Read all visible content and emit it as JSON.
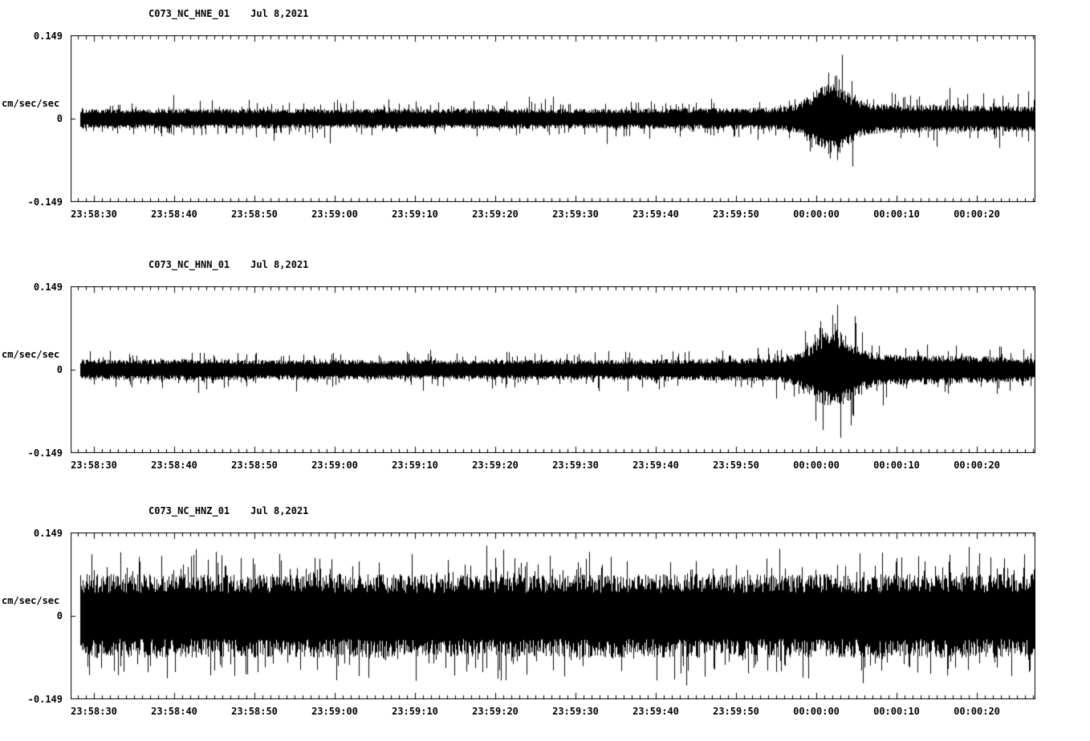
{
  "page": {
    "background": "#ffffff",
    "foreground": "#000000"
  },
  "chart_data": [
    {
      "type": "line",
      "subtype": "seismogram",
      "station": "C073_NC_HNE_01",
      "date": "Jul 8,2021",
      "title": "C073_NC_HNE_01  Jul 8,2021",
      "ylabel": "cm/sec/sec",
      "ylim": [
        -0.149,
        0.149
      ],
      "y_tick_labels": [
        "0.149",
        "0",
        "-0.149"
      ],
      "x_tick_labels": [
        "23:58:30",
        "23:58:40",
        "23:58:50",
        "23:59:00",
        "23:59:10",
        "23:59:20",
        "23:59:30",
        "23:59:40",
        "23:59:50",
        "00:00:00",
        "00:00:10",
        "00:00:20"
      ],
      "x_range": [
        "23:58:27",
        "00:00:27"
      ],
      "grid": false,
      "legend": "none",
      "series": [
        {
          "name": "C073.NC.HNE.01",
          "units": "cm/sec/sec",
          "description": "continuous background noise ~±0.02 cm/sec/sec; signal burst arriving ~00:00:00 peaking ~±0.09, amplitude slightly elevated through end of window",
          "event": {
            "arrival_time": "00:00:00",
            "peak_amplitude": 0.09
          },
          "waveform": {
            "seed": 101,
            "baseline_amp": 0.018,
            "spike": {
              "prob": 0.1,
              "mult": [
                1.4,
                2.0
              ]
            },
            "rare_spike": {
              "prob": 0.012,
              "mult": [
                2.1,
                2.6
              ]
            },
            "envelope": [
              [
                0,
                1.0
              ],
              [
                0.55,
                1.0
              ],
              [
                0.7,
                1.08
              ],
              [
                0.8,
                1.35
              ],
              [
                0.85,
                1.45
              ],
              [
                0.92,
                1.35
              ],
              [
                1,
                1.25
              ]
            ],
            "burst": {
              "center_frac": 0.787,
              "sigma_frac": 0.018,
              "add_mult": 2.2
            }
          }
        }
      ]
    },
    {
      "type": "line",
      "subtype": "seismogram",
      "station": "C073_NC_HNN_01",
      "date": "Jul 8,2021",
      "title": "C073_NC_HNN_01  Jul 8,2021",
      "ylabel": "cm/sec/sec",
      "ylim": [
        -0.149,
        0.149
      ],
      "y_tick_labels": [
        "0.149",
        "0",
        "-0.149"
      ],
      "x_tick_labels": [
        "23:58:30",
        "23:58:40",
        "23:58:50",
        "23:59:00",
        "23:59:10",
        "23:59:20",
        "23:59:30",
        "23:59:40",
        "23:59:50",
        "00:00:00",
        "00:00:10",
        "00:00:20"
      ],
      "x_range": [
        "23:58:27",
        "00:00:27"
      ],
      "grid": false,
      "legend": "none",
      "series": [
        {
          "name": "C073.NC.HNN.01",
          "units": "cm/sec/sec",
          "description": "continuous background noise ~±0.02 cm/sec/sec; strongest burst ~00:00:00 peaking ~±0.10 with spiky coda clusters near 00:00:08 and 00:00:13",
          "event": {
            "arrival_time": "00:00:00",
            "peak_amplitude": 0.1
          },
          "waveform": {
            "seed": 202,
            "baseline_amp": 0.018,
            "spike": {
              "prob": 0.1,
              "mult": [
                1.4,
                2.0
              ]
            },
            "rare_spike": {
              "prob": 0.012,
              "mult": [
                2.1,
                2.6
              ]
            },
            "envelope": [
              [
                0,
                1.0
              ],
              [
                0.1,
                1.05
              ],
              [
                0.14,
                1.12
              ],
              [
                0.18,
                1.0
              ],
              [
                0.55,
                1.0
              ],
              [
                0.72,
                1.15
              ],
              [
                0.8,
                1.35
              ],
              [
                0.86,
                1.55
              ],
              [
                0.9,
                1.45
              ],
              [
                0.95,
                1.35
              ],
              [
                1,
                1.1
              ]
            ],
            "burst": {
              "center_frac": 0.79,
              "sigma_frac": 0.02,
              "add_mult": 2.6
            }
          }
        }
      ]
    },
    {
      "type": "line",
      "subtype": "seismogram",
      "station": "C073_NC_HNZ_01",
      "date": "Jul 8,2021",
      "title": "C073_NC_HNZ_01  Jul 8,2021",
      "ylabel": "cm/sec/sec",
      "ylim": [
        -0.149,
        0.149
      ],
      "y_tick_labels": [
        "0.149",
        "0",
        "-0.149"
      ],
      "x_tick_labels": [
        "23:58:30",
        "23:58:40",
        "23:58:50",
        "23:59:00",
        "23:59:10",
        "23:59:20",
        "23:59:30",
        "23:59:40",
        "23:59:50",
        "00:00:00",
        "00:00:10",
        "00:00:20"
      ],
      "x_range": [
        "23:58:27",
        "00:00:27"
      ],
      "grid": false,
      "legend": "none",
      "series": [
        {
          "name": "C073.NC.HNZ.01",
          "units": "cm/sec/sec",
          "description": "high-amplitude noise across entire window, dense band ~±0.08 cm/sec/sec with frequent spikes approaching ±0.14; no distinct event envelope visible",
          "waveform": {
            "seed": 303,
            "baseline_amp": 0.075,
            "spike": {
              "prob": 0.14,
              "mult": [
                1.25,
                1.6
              ]
            },
            "rare_spike": {
              "prob": 0.02,
              "mult": [
                1.6,
                1.85
              ]
            },
            "envelope": [
              [
                0,
                1.0
              ],
              [
                1,
                1.0
              ]
            ],
            "burst": null
          }
        }
      ]
    }
  ]
}
